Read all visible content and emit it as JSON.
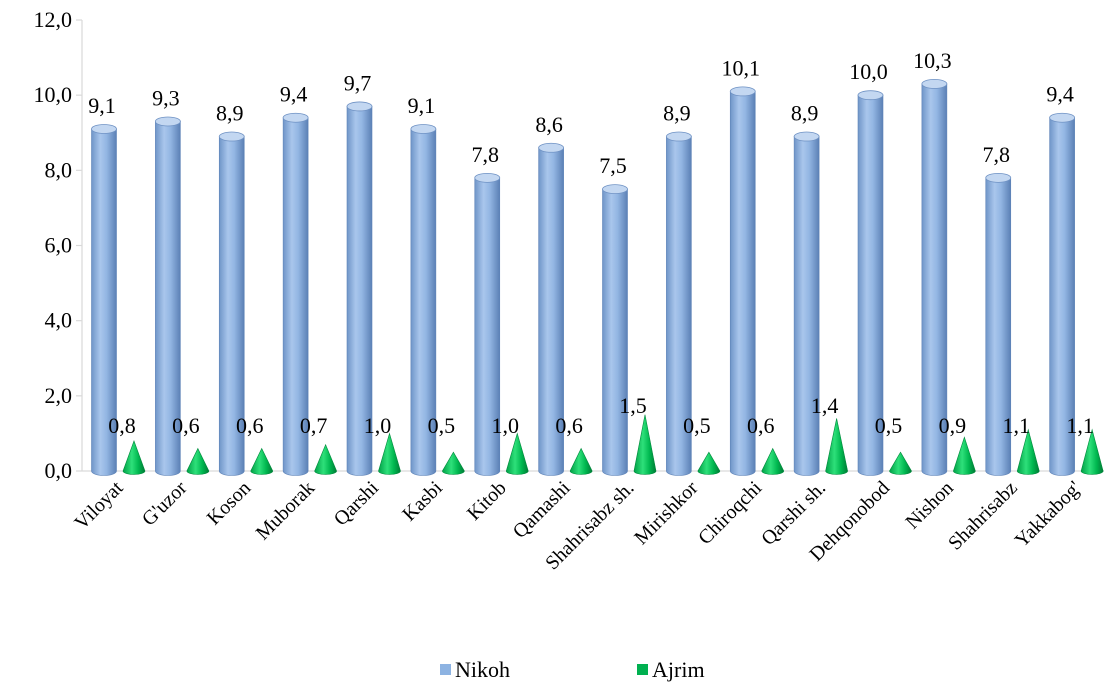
{
  "chart_data": {
    "type": "bar",
    "title": "",
    "xlabel": "",
    "ylabel": "",
    "ylim": [
      0,
      12
    ],
    "yticks": [
      "0,0",
      "2,0",
      "4,0",
      "6,0",
      "8,0",
      "10,0",
      "12,0"
    ],
    "grid": false,
    "legend_position": "bottom",
    "categories": [
      "Viloyat",
      "G'uzor",
      "Koson",
      "Muborak",
      "Qarshi",
      "Kasbi",
      "Kitob",
      "Qamashi",
      "Shahrisabz sh.",
      "Mirishkor",
      "Chiroqchi",
      "Qarshi sh.",
      "Dehqonobod",
      "Nishon",
      "Shahrisabz",
      "Yakkabog'"
    ],
    "series": [
      {
        "name": "Nikoh",
        "color": "#8db3e2",
        "shape": "cylinder",
        "values": [
          9.1,
          9.3,
          8.9,
          9.4,
          9.7,
          9.1,
          7.8,
          8.6,
          7.5,
          8.9,
          10.1,
          8.9,
          10.0,
          10.3,
          7.8,
          9.4
        ],
        "labels": [
          "9,1",
          "9,3",
          "8,9",
          "9,4",
          "9,7",
          "9,1",
          "7,8",
          "8,6",
          "7,5",
          "8,9",
          "10,1",
          "8,9",
          "10,0",
          "10,3",
          "7,8",
          "9,4"
        ]
      },
      {
        "name": "Ajrim",
        "color": "#00b050",
        "shape": "cone",
        "values": [
          0.8,
          0.6,
          0.6,
          0.7,
          1.0,
          0.5,
          1.0,
          0.6,
          1.5,
          0.5,
          0.6,
          1.4,
          0.5,
          0.9,
          1.1,
          1.1
        ],
        "labels": [
          "0,8",
          "0,6",
          "0,6",
          "0,7",
          "1,0",
          "0,5",
          "1,0",
          "0,6",
          "1,5",
          "0,5",
          "0,6",
          "1,4",
          "0,5",
          "0,9",
          "1,1",
          "1,1"
        ]
      }
    ]
  }
}
